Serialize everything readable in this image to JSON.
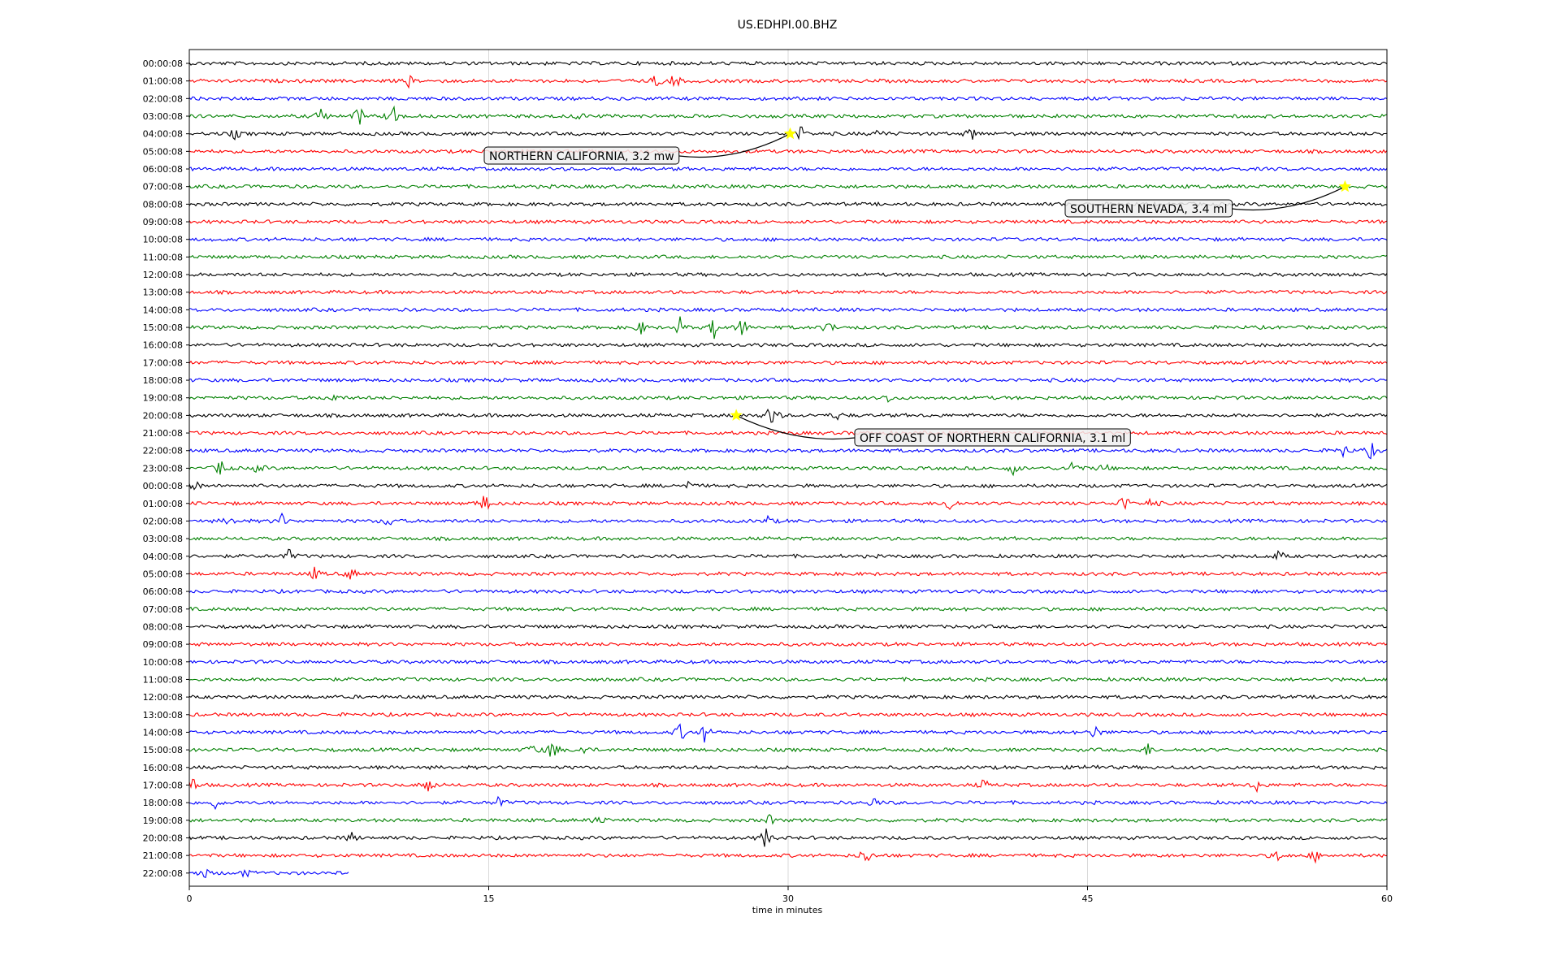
{
  "chart_data": {
    "type": "line",
    "subtype": "helicorder",
    "title": "US.EDHPI.00.BHZ",
    "xlabel": "time in minutes",
    "ylabel": "",
    "xlim": [
      0,
      60
    ],
    "xticks": [
      0,
      15,
      30,
      45,
      60
    ],
    "grid": "vertical lines at 15, 30, 45 minutes",
    "trace_colors": [
      "#000000",
      "#ff0000",
      "#0000ff",
      "#008000"
    ],
    "row_labels": [
      "00:00:08",
      "01:00:08",
      "02:00:08",
      "03:00:08",
      "04:00:08",
      "05:00:08",
      "06:00:08",
      "07:00:08",
      "08:00:08",
      "09:00:08",
      "10:00:08",
      "11:00:08",
      "12:00:08",
      "13:00:08",
      "14:00:08",
      "15:00:08",
      "16:00:08",
      "17:00:08",
      "18:00:08",
      "19:00:08",
      "20:00:08",
      "21:00:08",
      "22:00:08",
      "23:00:08",
      "00:00:08",
      "01:00:08",
      "02:00:08",
      "03:00:08",
      "04:00:08",
      "05:00:08",
      "06:00:08",
      "07:00:08",
      "08:00:08",
      "09:00:08",
      "10:00:08",
      "11:00:08",
      "12:00:08",
      "13:00:08",
      "14:00:08",
      "15:00:08",
      "16:00:08",
      "17:00:08",
      "18:00:08",
      "19:00:08",
      "20:00:08",
      "21:00:08",
      "22:00:08"
    ],
    "last_row_end_minute": 8,
    "bursts": [
      {
        "row": 1,
        "minute": 11.0,
        "amp": 0.5
      },
      {
        "row": 1,
        "minute": 23.4,
        "amp": 0.6
      },
      {
        "row": 1,
        "minute": 24.3,
        "amp": 0.8
      },
      {
        "row": 3,
        "minute": 6.6,
        "amp": 0.8
      },
      {
        "row": 3,
        "minute": 8.5,
        "amp": 1.0
      },
      {
        "row": 3,
        "minute": 10.2,
        "amp": 1.2
      },
      {
        "row": 3,
        "minute": 19.5,
        "amp": 0.4
      },
      {
        "row": 4,
        "minute": 2.3,
        "amp": 0.5
      },
      {
        "row": 4,
        "minute": 30.6,
        "amp": 0.8
      },
      {
        "row": 4,
        "minute": 34.6,
        "amp": 0.5
      },
      {
        "row": 4,
        "minute": 39.2,
        "amp": 0.7
      },
      {
        "row": 15,
        "minute": 22.6,
        "amp": 0.7
      },
      {
        "row": 15,
        "minute": 24.6,
        "amp": 0.9
      },
      {
        "row": 15,
        "minute": 26.3,
        "amp": 1.0
      },
      {
        "row": 15,
        "minute": 27.7,
        "amp": 1.0
      },
      {
        "row": 15,
        "minute": 32.0,
        "amp": 0.7
      },
      {
        "row": 19,
        "minute": 7.1,
        "amp": 0.6
      },
      {
        "row": 19,
        "minute": 35.0,
        "amp": 0.4
      },
      {
        "row": 20,
        "minute": 29.2,
        "amp": 1.6
      },
      {
        "row": 20,
        "minute": 32.5,
        "amp": 0.4
      },
      {
        "row": 22,
        "minute": 57.8,
        "amp": 0.7
      },
      {
        "row": 22,
        "minute": 59.2,
        "amp": 0.8
      },
      {
        "row": 23,
        "minute": 1.6,
        "amp": 0.9
      },
      {
        "row": 23,
        "minute": 3.5,
        "amp": 0.5
      },
      {
        "row": 23,
        "minute": 41.3,
        "amp": 0.6
      },
      {
        "row": 23,
        "minute": 44.3,
        "amp": 1.0
      },
      {
        "row": 23,
        "minute": 45.8,
        "amp": 0.5
      },
      {
        "row": 24,
        "minute": 0.3,
        "amp": 0.5
      },
      {
        "row": 24,
        "minute": 25.0,
        "amp": 0.4
      },
      {
        "row": 25,
        "minute": 14.8,
        "amp": 1.0
      },
      {
        "row": 25,
        "minute": 38.1,
        "amp": 0.9
      },
      {
        "row": 25,
        "minute": 46.8,
        "amp": 1.0
      },
      {
        "row": 25,
        "minute": 48.2,
        "amp": 0.6
      },
      {
        "row": 26,
        "minute": 2.0,
        "amp": 0.5
      },
      {
        "row": 26,
        "minute": 4.6,
        "amp": 0.7
      },
      {
        "row": 26,
        "minute": 10.0,
        "amp": 0.6
      },
      {
        "row": 26,
        "minute": 29.0,
        "amp": 0.4
      },
      {
        "row": 28,
        "minute": 5.0,
        "amp": 0.6
      },
      {
        "row": 28,
        "minute": 54.6,
        "amp": 0.5
      },
      {
        "row": 29,
        "minute": 6.3,
        "amp": 0.6
      },
      {
        "row": 29,
        "minute": 8.1,
        "amp": 0.6
      },
      {
        "row": 38,
        "minute": 24.6,
        "amp": 0.9
      },
      {
        "row": 38,
        "minute": 25.8,
        "amp": 0.8
      },
      {
        "row": 38,
        "minute": 45.4,
        "amp": 0.7
      },
      {
        "row": 39,
        "minute": 17.2,
        "amp": 0.6
      },
      {
        "row": 39,
        "minute": 18.2,
        "amp": 1.2
      },
      {
        "row": 39,
        "minute": 19.7,
        "amp": 0.6
      },
      {
        "row": 39,
        "minute": 48.0,
        "amp": 0.6
      },
      {
        "row": 40,
        "minute": 45.2,
        "amp": 0.5
      },
      {
        "row": 41,
        "minute": 0.2,
        "amp": 0.7
      },
      {
        "row": 41,
        "minute": 12.0,
        "amp": 0.9
      },
      {
        "row": 41,
        "minute": 39.8,
        "amp": 0.5
      },
      {
        "row": 41,
        "minute": 53.5,
        "amp": 0.6
      },
      {
        "row": 42,
        "minute": 1.3,
        "amp": 0.5
      },
      {
        "row": 42,
        "minute": 15.5,
        "amp": 0.6
      },
      {
        "row": 42,
        "minute": 34.3,
        "amp": 0.5
      },
      {
        "row": 43,
        "minute": 20.5,
        "amp": 0.6
      },
      {
        "row": 43,
        "minute": 29.1,
        "amp": 0.5
      },
      {
        "row": 44,
        "minute": 8.1,
        "amp": 0.5
      },
      {
        "row": 44,
        "minute": 28.9,
        "amp": 1.1
      },
      {
        "row": 45,
        "minute": 33.9,
        "amp": 0.9
      },
      {
        "row": 45,
        "minute": 54.5,
        "amp": 0.5
      },
      {
        "row": 45,
        "minute": 56.4,
        "amp": 0.5
      },
      {
        "row": 46,
        "minute": 0.7,
        "amp": 0.6
      },
      {
        "row": 46,
        "minute": 2.8,
        "amp": 0.4
      }
    ],
    "events": [
      {
        "label": "NORTHERN CALIFORNIA, 3.2 mw",
        "row": 4,
        "minute": 30.1,
        "marker_color": "#ffff00"
      },
      {
        "label": "SOUTHERN NEVADA, 3.4 ml",
        "row": 7,
        "minute": 57.9,
        "marker_color": "#ffff00"
      },
      {
        "label": "OFF COAST OF NORTHERN CALIFORNIA, 3.1 ml",
        "row": 20,
        "minute": 27.4,
        "marker_color": "#ffff00"
      }
    ]
  }
}
